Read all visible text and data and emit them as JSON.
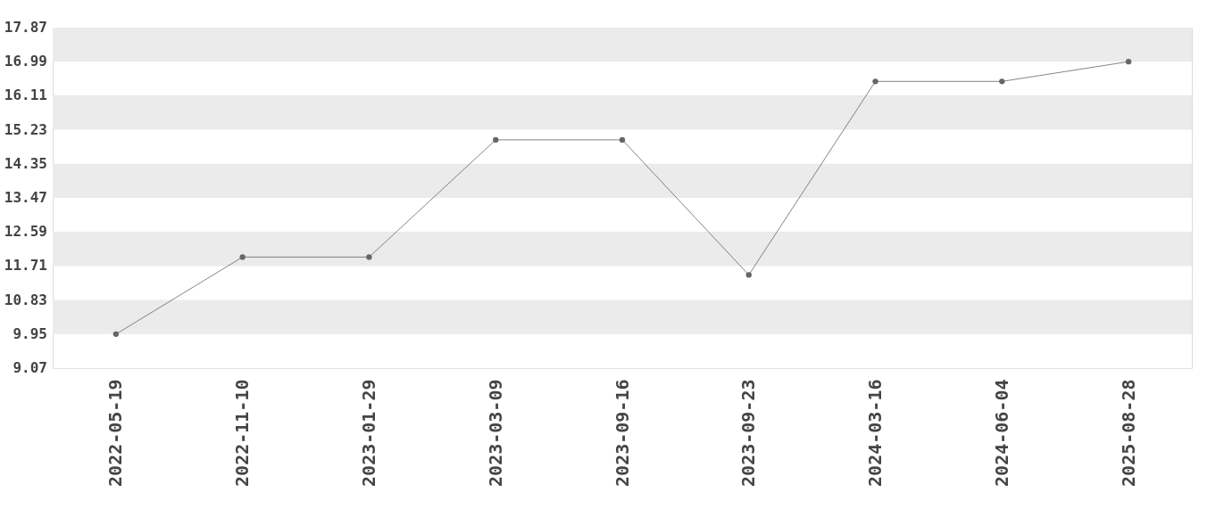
{
  "chart_data": {
    "type": "line",
    "categories": [
      "2022-05-19",
      "2022-11-10",
      "2023-01-29",
      "2023-03-09",
      "2023-09-16",
      "2023-09-23",
      "2024-03-16",
      "2024-06-04",
      "2025-08-28"
    ],
    "series": [
      {
        "color": "#666666",
        "values": [
          9.95,
          11.94,
          11.94,
          14.97,
          14.97,
          11.48,
          16.48,
          16.48,
          16.99
        ]
      }
    ],
    "ylim": [
      9.07,
      17.87
    ],
    "yticks": [
      9.07,
      9.95,
      10.83,
      11.71,
      12.59,
      13.47,
      14.35,
      15.23,
      16.11,
      16.99,
      17.87
    ],
    "grid": true,
    "marker": "circle",
    "line_style": "solid"
  }
}
